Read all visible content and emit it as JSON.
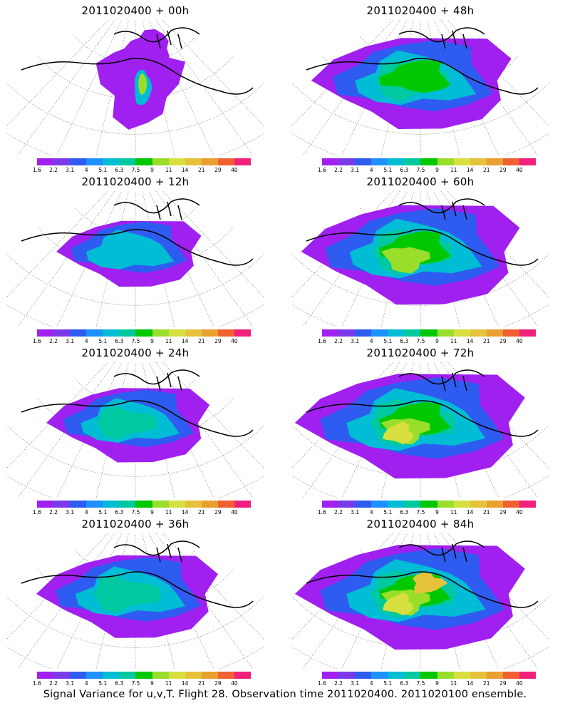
{
  "panels": [
    {
      "title": "2011020400 + 00h",
      "intensity": 0
    },
    {
      "title": "2011020400 + 48h",
      "intensity": 4
    },
    {
      "title": "2011020400 + 12h",
      "intensity": 1
    },
    {
      "title": "2011020400 + 60h",
      "intensity": 5
    },
    {
      "title": "2011020400 + 24h",
      "intensity": 2
    },
    {
      "title": "2011020400 + 72h",
      "intensity": 6
    },
    {
      "title": "2011020400 + 36h",
      "intensity": 3
    },
    {
      "title": "2011020400 + 84h",
      "intensity": 7
    }
  ],
  "colorbar": {
    "labels": [
      "1.6",
      "2.2",
      "3.1",
      "4",
      "5.1",
      "6.3",
      "7.5",
      "9",
      "11",
      "14",
      "21",
      "29",
      "40"
    ],
    "colors": [
      "#a020f0",
      "#7a3ae8",
      "#2f5cf0",
      "#1e90ff",
      "#00bcd4",
      "#00c8a0",
      "#00c800",
      "#9ade2c",
      "#d8e040",
      "#e6c23a",
      "#e8a030",
      "#f06030",
      "#f0207c"
    ]
  },
  "footer": "Signal Variance for u,v,T. Flight 28. Observation time 2011020400. 2011020100 ensemble."
}
